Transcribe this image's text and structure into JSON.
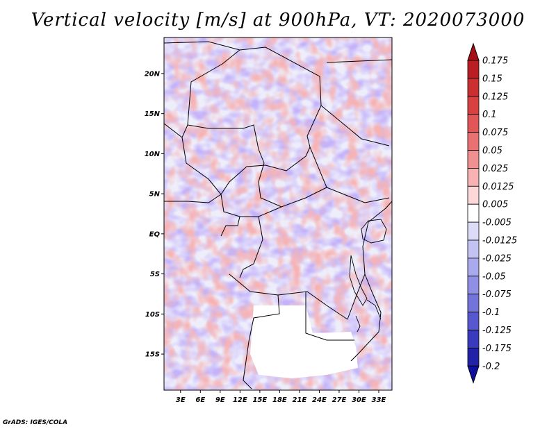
{
  "title": "Vertical velocity [m/s] at 900hPa, VT: 2020073000",
  "credit": "GrADS: IGES/COLA",
  "map": {
    "lat_labels": [
      "20N",
      "15N",
      "10N",
      "5N",
      "EQ",
      "5S",
      "10S",
      "15S"
    ],
    "lat_values": [
      20,
      15,
      10,
      5,
      0,
      -5,
      -10,
      -15
    ],
    "lon_labels": [
      "3E",
      "6E",
      "9E",
      "12E",
      "15E",
      "18E",
      "21E",
      "24E",
      "27E",
      "30E",
      "33E"
    ],
    "lon_values": [
      3,
      6,
      9,
      12,
      15,
      18,
      21,
      24,
      27,
      30,
      33
    ],
    "lat_range": [
      -19.5,
      24.5
    ],
    "lon_range": [
      0.5,
      35
    ]
  },
  "colorbar": {
    "labels": [
      "0.175",
      "0.15",
      "0.125",
      "0.1",
      "0.075",
      "0.05",
      "0.025",
      "0.0125",
      "0.005",
      "-0.005",
      "-0.0125",
      "-0.025",
      "-0.05",
      "-0.075",
      "-0.1",
      "-0.125",
      "-0.175",
      "-0.2"
    ],
    "colors": [
      "#a50f15",
      "#bb1e22",
      "#cb2f2f",
      "#d94040",
      "#e25656",
      "#e97171",
      "#f19090",
      "#f7b3b3",
      "#fcd8d8",
      "#ffffff",
      "#dcdcf8",
      "#c3c3f3",
      "#a9a9ee",
      "#8f8fe6",
      "#7373dc",
      "#5757cf",
      "#3a3abf",
      "#2222a8",
      "#1010a0"
    ]
  }
}
